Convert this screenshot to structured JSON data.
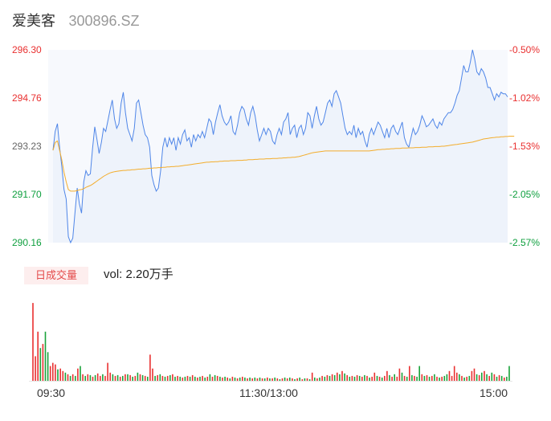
{
  "header": {
    "name": "爱美客",
    "code": "300896.SZ"
  },
  "colors": {
    "up": "#e93030",
    "down": "#0e9f3e",
    "price_line": "#4f86e8",
    "avg_line": "#f3ad2c",
    "volume_up": "#e93030",
    "volume_down": "#1aa33a"
  },
  "volume_panel": {
    "badge": "日成交量",
    "vol_text": "vol: 2.20万手"
  },
  "chart_data": {
    "type": "line",
    "yticks": [
      "296.30",
      "294.76",
      "293.23",
      "291.70",
      "290.16"
    ],
    "pct_ticks": [
      "-0.50%",
      "-1.02%",
      "-1.53%",
      "-2.05%",
      "-2.57%"
    ],
    "ylim": [
      290.16,
      296.3
    ],
    "x_labels": [
      "09:30",
      "11:30/13:00",
      "15:00"
    ],
    "series": [
      {
        "values": [
          293.1,
          293.7,
          293.95,
          293.2,
          292.6,
          291.85,
          291.55,
          290.35,
          290.16,
          290.3,
          291.1,
          291.9,
          291.4,
          291.1,
          292.1,
          292.45,
          292.3,
          292.35,
          293.15,
          293.85,
          293.45,
          293.0,
          293.35,
          293.8,
          293.7,
          294.05,
          294.4,
          294.7,
          294.1,
          293.8,
          293.95,
          294.6,
          294.95,
          294.3,
          293.8,
          293.6,
          293.4,
          293.8,
          294.6,
          294.7,
          294.3,
          293.9,
          293.6,
          293.5,
          293.2,
          292.3,
          292.0,
          291.8,
          291.9,
          292.45,
          293.2,
          293.5,
          293.2,
          293.5,
          293.3,
          293.5,
          293.1,
          293.5,
          293.3,
          293.6,
          293.75,
          293.4,
          293.5,
          293.2,
          293.6,
          293.4,
          293.6,
          293.5,
          293.7,
          293.5,
          293.8,
          294.1,
          294.0,
          293.6,
          294.0,
          294.3,
          294.55,
          294.2,
          294.0,
          293.9,
          294.0,
          294.2,
          293.7,
          293.6,
          293.9,
          294.3,
          294.5,
          294.4,
          294.1,
          293.9,
          294.3,
          294.5,
          294.2,
          293.75,
          293.4,
          293.6,
          293.8,
          293.6,
          293.8,
          293.7,
          293.4,
          293.3,
          293.6,
          293.8,
          293.6,
          294.0,
          294.1,
          294.3,
          293.6,
          293.8,
          293.9,
          293.5,
          293.8,
          293.9,
          293.6,
          293.8,
          294.3,
          294.2,
          293.8,
          294.2,
          294.5,
          294.1,
          293.9,
          294.0,
          294.3,
          294.6,
          294.7,
          294.5,
          294.9,
          295.0,
          294.8,
          294.6,
          294.2,
          293.8,
          293.6,
          293.7,
          293.6,
          293.9,
          293.5,
          293.8,
          293.6,
          293.7,
          293.4,
          293.2,
          293.6,
          293.8,
          293.6,
          293.8,
          294.0,
          293.9,
          293.7,
          293.5,
          293.8,
          293.5,
          293.8,
          293.9,
          293.7,
          293.6,
          293.8,
          294.0,
          293.5,
          293.3,
          293.2,
          293.5,
          293.8,
          293.6,
          293.7,
          293.9,
          294.2,
          294.05,
          293.85,
          293.9,
          294.0,
          294.1,
          293.9,
          293.8,
          294.0,
          293.9,
          294.1,
          294.2,
          294.3,
          294.3,
          294.4,
          294.6,
          294.85,
          295.0,
          295.4,
          295.8,
          295.6,
          295.6,
          295.9,
          296.3,
          296.0,
          295.6,
          295.5,
          295.7,
          295.6,
          295.4,
          295.1,
          295.1,
          294.9,
          294.7,
          294.9,
          294.8,
          294.95,
          294.9,
          294.9,
          294.8
        ]
      },
      {
        "values": [
          293.1,
          293.35,
          293.4,
          293.1,
          292.8,
          292.4,
          292.1,
          291.85,
          291.8,
          291.8,
          291.8,
          291.82,
          291.84,
          291.85,
          291.88,
          291.92,
          291.95,
          291.98,
          292.02,
          292.07,
          292.12,
          292.17,
          292.22,
          292.27,
          292.31,
          292.35,
          292.38,
          292.4,
          292.42,
          292.43,
          292.44,
          292.45,
          292.46,
          292.46,
          292.47,
          292.47,
          292.48,
          292.48,
          292.49,
          292.5,
          292.5,
          292.51,
          292.51,
          292.52,
          292.53,
          292.53,
          292.54,
          292.54,
          292.55,
          292.55,
          292.56,
          292.56,
          292.57,
          292.57,
          292.58,
          292.58,
          292.59,
          292.59,
          292.6,
          292.61,
          292.62,
          292.63,
          292.64,
          292.65,
          292.66,
          292.67,
          292.68,
          292.69,
          292.7,
          292.71,
          292.72,
          292.72,
          292.73,
          292.73,
          292.74,
          292.74,
          292.75,
          292.75,
          292.76,
          292.76,
          292.76,
          292.77,
          292.77,
          292.77,
          292.78,
          292.78,
          292.78,
          292.79,
          292.79,
          292.8,
          292.8,
          292.8,
          292.81,
          292.81,
          292.82,
          292.82,
          292.82,
          292.83,
          292.83,
          292.83,
          292.84,
          292.84,
          292.84,
          292.85,
          292.85,
          292.86,
          292.86,
          292.87,
          292.87,
          292.88,
          292.88,
          292.89,
          292.9,
          292.92,
          292.94,
          292.96,
          292.98,
          293.0,
          293.02,
          293.03,
          293.04,
          293.05,
          293.06,
          293.07,
          293.08,
          293.08,
          293.08,
          293.08,
          293.08,
          293.08,
          293.08,
          293.08,
          293.08,
          293.08,
          293.08,
          293.08,
          293.08,
          293.08,
          293.08,
          293.08,
          293.08,
          293.08,
          293.08,
          293.08,
          293.08,
          293.09,
          293.1,
          293.11,
          293.12,
          293.12,
          293.13,
          293.13,
          293.14,
          293.14,
          293.15,
          293.15,
          293.16,
          293.16,
          293.16,
          293.17,
          293.17,
          293.17,
          293.18,
          293.18,
          293.18,
          293.19,
          293.19,
          293.19,
          293.2,
          293.2,
          293.2,
          293.21,
          293.21,
          293.21,
          293.22,
          293.22,
          293.22,
          293.23,
          293.23,
          293.24,
          293.25,
          293.26,
          293.27,
          293.28,
          293.29,
          293.3,
          293.31,
          293.32,
          293.33,
          293.34,
          293.35,
          293.36,
          293.38,
          293.4,
          293.42,
          293.44,
          293.46,
          293.47,
          293.48,
          293.49,
          293.5,
          293.51,
          293.52,
          293.52,
          293.53,
          293.53,
          293.54,
          293.54,
          293.55,
          293.55,
          293.55
        ]
      }
    ],
    "volume": [
      {
        "v": 0.95,
        "u": 1
      },
      {
        "v": 0.3,
        "u": 1
      },
      {
        "v": 0.6,
        "u": 1
      },
      {
        "v": 0.4,
        "u": 0
      },
      {
        "v": 0.45,
        "u": 1
      },
      {
        "v": 0.6,
        "u": 0
      },
      {
        "v": 0.35,
        "u": 0
      },
      {
        "v": 0.18,
        "u": 1
      },
      {
        "v": 0.22,
        "u": 1
      },
      {
        "v": 0.2,
        "u": 1
      },
      {
        "v": 0.14,
        "u": 0
      },
      {
        "v": 0.15,
        "u": 1
      },
      {
        "v": 0.12,
        "u": 1
      },
      {
        "v": 0.1,
        "u": 0
      },
      {
        "v": 0.08,
        "u": 1
      },
      {
        "v": 0.06,
        "u": 0
      },
      {
        "v": 0.08,
        "u": 1
      },
      {
        "v": 0.06,
        "u": 0
      },
      {
        "v": 0.15,
        "u": 1
      },
      {
        "v": 0.18,
        "u": 0
      },
      {
        "v": 0.08,
        "u": 1
      },
      {
        "v": 0.06,
        "u": 0
      },
      {
        "v": 0.08,
        "u": 1
      },
      {
        "v": 0.07,
        "u": 0
      },
      {
        "v": 0.05,
        "u": 1
      },
      {
        "v": 0.07,
        "u": 0
      },
      {
        "v": 0.09,
        "u": 1
      },
      {
        "v": 0.06,
        "u": 1
      },
      {
        "v": 0.08,
        "u": 0
      },
      {
        "v": 0.06,
        "u": 1
      },
      {
        "v": 0.22,
        "u": 1
      },
      {
        "v": 0.1,
        "u": 1
      },
      {
        "v": 0.08,
        "u": 0
      },
      {
        "v": 0.06,
        "u": 1
      },
      {
        "v": 0.07,
        "u": 0
      },
      {
        "v": 0.05,
        "u": 1
      },
      {
        "v": 0.06,
        "u": 0
      },
      {
        "v": 0.08,
        "u": 1
      },
      {
        "v": 0.08,
        "u": 0
      },
      {
        "v": 0.07,
        "u": 1
      },
      {
        "v": 0.05,
        "u": 0
      },
      {
        "v": 0.06,
        "u": 1
      },
      {
        "v": 0.1,
        "u": 0
      },
      {
        "v": 0.08,
        "u": 1
      },
      {
        "v": 0.07,
        "u": 0
      },
      {
        "v": 0.06,
        "u": 1
      },
      {
        "v": 0.05,
        "u": 0
      },
      {
        "v": 0.32,
        "u": 1
      },
      {
        "v": 0.15,
        "u": 1
      },
      {
        "v": 0.06,
        "u": 0
      },
      {
        "v": 0.07,
        "u": 1
      },
      {
        "v": 0.08,
        "u": 0
      },
      {
        "v": 0.06,
        "u": 1
      },
      {
        "v": 0.05,
        "u": 0
      },
      {
        "v": 0.06,
        "u": 1
      },
      {
        "v": 0.07,
        "u": 0
      },
      {
        "v": 0.08,
        "u": 1
      },
      {
        "v": 0.05,
        "u": 0
      },
      {
        "v": 0.06,
        "u": 1
      },
      {
        "v": 0.05,
        "u": 0
      },
      {
        "v": 0.04,
        "u": 1
      },
      {
        "v": 0.05,
        "u": 0
      },
      {
        "v": 0.06,
        "u": 1
      },
      {
        "v": 0.05,
        "u": 0
      },
      {
        "v": 0.07,
        "u": 1
      },
      {
        "v": 0.05,
        "u": 0
      },
      {
        "v": 0.04,
        "u": 1
      },
      {
        "v": 0.05,
        "u": 0
      },
      {
        "v": 0.06,
        "u": 1
      },
      {
        "v": 0.04,
        "u": 0
      },
      {
        "v": 0.05,
        "u": 1
      },
      {
        "v": 0.08,
        "u": 0
      },
      {
        "v": 0.05,
        "u": 1
      },
      {
        "v": 0.07,
        "u": 0
      },
      {
        "v": 0.06,
        "u": 1
      },
      {
        "v": 0.05,
        "u": 0
      },
      {
        "v": 0.04,
        "u": 1
      },
      {
        "v": 0.05,
        "u": 0
      },
      {
        "v": 0.04,
        "u": 1
      },
      {
        "v": 0.03,
        "u": 0
      },
      {
        "v": 0.05,
        "u": 1
      },
      {
        "v": 0.04,
        "u": 0
      },
      {
        "v": 0.03,
        "u": 1
      },
      {
        "v": 0.04,
        "u": 0
      },
      {
        "v": 0.05,
        "u": 1
      },
      {
        "v": 0.04,
        "u": 0
      },
      {
        "v": 0.03,
        "u": 1
      },
      {
        "v": 0.04,
        "u": 0
      },
      {
        "v": 0.03,
        "u": 1
      },
      {
        "v": 0.04,
        "u": 0
      },
      {
        "v": 0.03,
        "u": 1
      },
      {
        "v": 0.04,
        "u": 0
      },
      {
        "v": 0.03,
        "u": 1
      },
      {
        "v": 0.03,
        "u": 0
      },
      {
        "v": 0.04,
        "u": 1
      },
      {
        "v": 0.03,
        "u": 0
      },
      {
        "v": 0.03,
        "u": 1
      },
      {
        "v": 0.04,
        "u": 0
      },
      {
        "v": 0.03,
        "u": 1
      },
      {
        "v": 0.02,
        "u": 0
      },
      {
        "v": 0.03,
        "u": 1
      },
      {
        "v": 0.04,
        "u": 0
      },
      {
        "v": 0.03,
        "u": 1
      },
      {
        "v": 0.04,
        "u": 0
      },
      {
        "v": 0.03,
        "u": 1
      },
      {
        "v": 0.02,
        "u": 0
      },
      {
        "v": 0.03,
        "u": 1
      },
      {
        "v": 0.04,
        "u": 0
      },
      {
        "v": 0.02,
        "u": 1
      },
      {
        "v": 0.03,
        "u": 0
      },
      {
        "v": 0.03,
        "u": 1
      },
      {
        "v": 0.02,
        "u": 0
      },
      {
        "v": 0.1,
        "u": 1
      },
      {
        "v": 0.04,
        "u": 0
      },
      {
        "v": 0.03,
        "u": 1
      },
      {
        "v": 0.04,
        "u": 0
      },
      {
        "v": 0.06,
        "u": 1
      },
      {
        "v": 0.05,
        "u": 0
      },
      {
        "v": 0.07,
        "u": 1
      },
      {
        "v": 0.06,
        "u": 0
      },
      {
        "v": 0.08,
        "u": 1
      },
      {
        "v": 0.07,
        "u": 0
      },
      {
        "v": 0.1,
        "u": 1
      },
      {
        "v": 0.08,
        "u": 0
      },
      {
        "v": 0.12,
        "u": 1
      },
      {
        "v": 0.09,
        "u": 0
      },
      {
        "v": 0.07,
        "u": 1
      },
      {
        "v": 0.05,
        "u": 0
      },
      {
        "v": 0.06,
        "u": 1
      },
      {
        "v": 0.05,
        "u": 0
      },
      {
        "v": 0.07,
        "u": 1
      },
      {
        "v": 0.06,
        "u": 0
      },
      {
        "v": 0.05,
        "u": 1
      },
      {
        "v": 0.07,
        "u": 0
      },
      {
        "v": 0.06,
        "u": 1
      },
      {
        "v": 0.04,
        "u": 0
      },
      {
        "v": 0.05,
        "u": 1
      },
      {
        "v": 0.1,
        "u": 1
      },
      {
        "v": 0.06,
        "u": 0
      },
      {
        "v": 0.05,
        "u": 1
      },
      {
        "v": 0.04,
        "u": 0
      },
      {
        "v": 0.06,
        "u": 1
      },
      {
        "v": 0.12,
        "u": 1
      },
      {
        "v": 0.07,
        "u": 0
      },
      {
        "v": 0.05,
        "u": 1
      },
      {
        "v": 0.08,
        "u": 0
      },
      {
        "v": 0.05,
        "u": 1
      },
      {
        "v": 0.15,
        "u": 1
      },
      {
        "v": 0.1,
        "u": 0
      },
      {
        "v": 0.06,
        "u": 1
      },
      {
        "v": 0.05,
        "u": 0
      },
      {
        "v": 0.18,
        "u": 1
      },
      {
        "v": 0.07,
        "u": 0
      },
      {
        "v": 0.06,
        "u": 1
      },
      {
        "v": 0.05,
        "u": 0
      },
      {
        "v": 0.18,
        "u": 0
      },
      {
        "v": 0.08,
        "u": 1
      },
      {
        "v": 0.06,
        "u": 0
      },
      {
        "v": 0.07,
        "u": 1
      },
      {
        "v": 0.05,
        "u": 0
      },
      {
        "v": 0.06,
        "u": 1
      },
      {
        "v": 0.08,
        "u": 0
      },
      {
        "v": 0.05,
        "u": 1
      },
      {
        "v": 0.04,
        "u": 0
      },
      {
        "v": 0.05,
        "u": 1
      },
      {
        "v": 0.06,
        "u": 0
      },
      {
        "v": 0.08,
        "u": 0
      },
      {
        "v": 0.12,
        "u": 1
      },
      {
        "v": 0.06,
        "u": 1
      },
      {
        "v": 0.18,
        "u": 1
      },
      {
        "v": 0.1,
        "u": 1
      },
      {
        "v": 0.08,
        "u": 0
      },
      {
        "v": 0.06,
        "u": 1
      },
      {
        "v": 0.04,
        "u": 0
      },
      {
        "v": 0.05,
        "u": 1
      },
      {
        "v": 0.06,
        "u": 0
      },
      {
        "v": 0.12,
        "u": 1
      },
      {
        "v": 0.15,
        "u": 1
      },
      {
        "v": 0.08,
        "u": 0
      },
      {
        "v": 0.07,
        "u": 1
      },
      {
        "v": 0.1,
        "u": 0
      },
      {
        "v": 0.12,
        "u": 1
      },
      {
        "v": 0.08,
        "u": 0
      },
      {
        "v": 0.06,
        "u": 1
      },
      {
        "v": 0.1,
        "u": 0
      },
      {
        "v": 0.08,
        "u": 1
      },
      {
        "v": 0.05,
        "u": 0
      },
      {
        "v": 0.07,
        "u": 1
      },
      {
        "v": 0.06,
        "u": 0
      },
      {
        "v": 0.04,
        "u": 1
      },
      {
        "v": 0.05,
        "u": 0
      },
      {
        "v": 0.18,
        "u": 0
      }
    ]
  }
}
